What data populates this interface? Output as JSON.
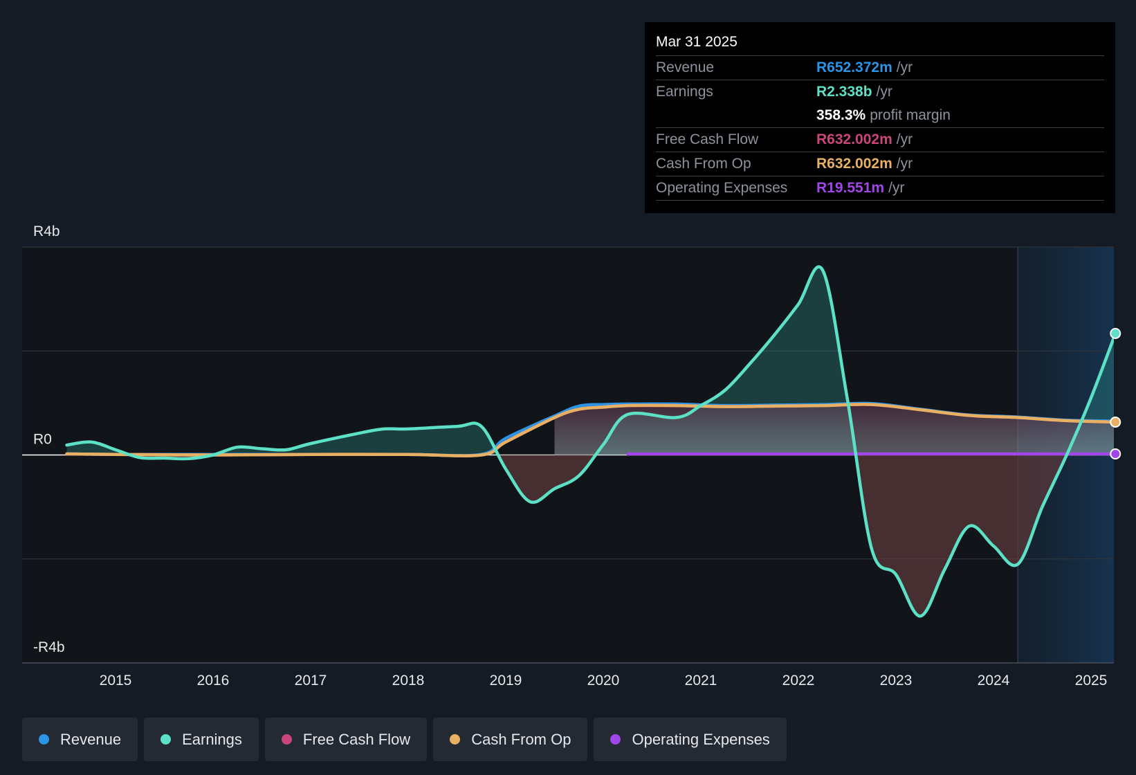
{
  "chart_data": {
    "type": "line",
    "currency": "R",
    "x_range": [
      2014.05,
      2025.25
    ],
    "ylim": [
      -4,
      4
    ],
    "y_unit": "billions",
    "y_ticks": [
      {
        "value": 4,
        "label": "R4b"
      },
      {
        "value": 0,
        "label": "R0"
      },
      {
        "value": -4,
        "label": "-R4b"
      }
    ],
    "x_ticks": [
      2015,
      2016,
      2017,
      2018,
      2019,
      2020,
      2021,
      2022,
      2023,
      2024,
      2025
    ],
    "forecast_start": 2024.25,
    "series": [
      {
        "name": "Revenue",
        "color": "#2b94e6",
        "points": [
          [
            2014.5,
            0.02
          ],
          [
            2015.0,
            0.01
          ],
          [
            2016.0,
            0.01
          ],
          [
            2017.0,
            0.01
          ],
          [
            2018.0,
            0.01
          ],
          [
            2018.75,
            0.01
          ],
          [
            2019.0,
            0.32
          ],
          [
            2019.5,
            0.75
          ],
          [
            2019.75,
            0.94
          ],
          [
            2020.0,
            0.97
          ],
          [
            2020.25,
            0.98
          ],
          [
            2020.75,
            0.98
          ],
          [
            2021.25,
            0.95
          ],
          [
            2021.75,
            0.96
          ],
          [
            2022.25,
            0.97
          ],
          [
            2022.75,
            0.99
          ],
          [
            2023.25,
            0.88
          ],
          [
            2023.75,
            0.77
          ],
          [
            2024.25,
            0.73
          ],
          [
            2024.75,
            0.67
          ],
          [
            2025.25,
            0.652
          ]
        ]
      },
      {
        "name": "Earnings",
        "color": "#5ce0c6",
        "points": [
          [
            2014.5,
            0.19
          ],
          [
            2014.75,
            0.25
          ],
          [
            2015.0,
            0.1
          ],
          [
            2015.25,
            -0.05
          ],
          [
            2015.5,
            -0.06
          ],
          [
            2015.75,
            -0.07
          ],
          [
            2016.0,
            0.0
          ],
          [
            2016.25,
            0.15
          ],
          [
            2016.5,
            0.12
          ],
          [
            2016.75,
            0.1
          ],
          [
            2017.0,
            0.22
          ],
          [
            2017.5,
            0.42
          ],
          [
            2017.75,
            0.5
          ],
          [
            2018.0,
            0.5
          ],
          [
            2018.5,
            0.55
          ],
          [
            2018.75,
            0.55
          ],
          [
            2019.0,
            -0.27
          ],
          [
            2019.25,
            -0.9
          ],
          [
            2019.5,
            -0.65
          ],
          [
            2019.75,
            -0.4
          ],
          [
            2020.0,
            0.2
          ],
          [
            2020.25,
            0.78
          ],
          [
            2020.75,
            0.72
          ],
          [
            2021.0,
            0.95
          ],
          [
            2021.25,
            1.25
          ],
          [
            2021.5,
            1.75
          ],
          [
            2021.75,
            2.3
          ],
          [
            2022.0,
            2.9
          ],
          [
            2022.25,
            3.55
          ],
          [
            2022.5,
            1.1
          ],
          [
            2022.75,
            -1.8
          ],
          [
            2023.0,
            -2.3
          ],
          [
            2023.25,
            -3.1
          ],
          [
            2023.5,
            -2.2
          ],
          [
            2023.75,
            -1.37
          ],
          [
            2024.0,
            -1.75
          ],
          [
            2024.25,
            -2.1
          ],
          [
            2024.5,
            -1.0
          ],
          [
            2024.75,
            0.0
          ],
          [
            2025.0,
            1.1
          ],
          [
            2025.25,
            2.338
          ]
        ]
      },
      {
        "name": "Free Cash Flow",
        "color": "#c9457a",
        "points": [
          [
            2014.5,
            0.02
          ],
          [
            2015.0,
            0.01
          ],
          [
            2016.0,
            0.0
          ],
          [
            2017.0,
            0.01
          ],
          [
            2018.0,
            0.01
          ],
          [
            2018.75,
            0.0
          ],
          [
            2019.0,
            0.25
          ],
          [
            2019.5,
            0.72
          ],
          [
            2019.75,
            0.88
          ],
          [
            2020.0,
            0.92
          ],
          [
            2020.25,
            0.95
          ],
          [
            2020.75,
            0.95
          ],
          [
            2021.25,
            0.93
          ],
          [
            2021.75,
            0.94
          ],
          [
            2022.25,
            0.95
          ],
          [
            2022.75,
            0.97
          ],
          [
            2023.25,
            0.87
          ],
          [
            2023.75,
            0.76
          ],
          [
            2024.25,
            0.72
          ],
          [
            2024.75,
            0.66
          ],
          [
            2025.25,
            0.632
          ]
        ]
      },
      {
        "name": "Cash From Op",
        "color": "#e8b063",
        "points": [
          [
            2014.5,
            0.02
          ],
          [
            2015.0,
            0.01
          ],
          [
            2016.0,
            0.0
          ],
          [
            2017.0,
            0.01
          ],
          [
            2018.0,
            0.01
          ],
          [
            2018.75,
            0.0
          ],
          [
            2019.0,
            0.25
          ],
          [
            2019.5,
            0.72
          ],
          [
            2019.75,
            0.88
          ],
          [
            2020.0,
            0.92
          ],
          [
            2020.25,
            0.95
          ],
          [
            2020.75,
            0.95
          ],
          [
            2021.25,
            0.93
          ],
          [
            2021.75,
            0.94
          ],
          [
            2022.25,
            0.95
          ],
          [
            2022.75,
            0.97
          ],
          [
            2023.25,
            0.87
          ],
          [
            2023.75,
            0.76
          ],
          [
            2024.25,
            0.72
          ],
          [
            2024.75,
            0.66
          ],
          [
            2025.25,
            0.632
          ]
        ]
      },
      {
        "name": "Operating Expenses",
        "color": "#a146e8",
        "points": [
          [
            2020.25,
            0.02
          ],
          [
            2021.0,
            0.02
          ],
          [
            2022.0,
            0.02
          ],
          [
            2023.0,
            0.02
          ],
          [
            2024.0,
            0.02
          ],
          [
            2025.25,
            0.0196
          ]
        ]
      }
    ]
  },
  "tooltip": {
    "date": "Mar 31 2025",
    "rows": [
      {
        "label": "Revenue",
        "value": "R652.372m",
        "unit": "/yr",
        "color": "#2b94e6"
      },
      {
        "label": "Earnings",
        "value": "R2.338b",
        "unit": "/yr",
        "color": "#5ce0c6"
      },
      {
        "label": "",
        "value": "358.3%",
        "unit": "profit margin",
        "color": "#ffffff"
      },
      {
        "label": "Free Cash Flow",
        "value": "R632.002m",
        "unit": "/yr",
        "color": "#c9457a"
      },
      {
        "label": "Cash From Op",
        "value": "R632.002m",
        "unit": "/yr",
        "color": "#e8b063"
      },
      {
        "label": "Operating Expenses",
        "value": "R19.551m",
        "unit": "/yr",
        "color": "#a146e8"
      }
    ]
  },
  "legend": [
    {
      "label": "Revenue",
      "color": "#2b94e6"
    },
    {
      "label": "Earnings",
      "color": "#5ce0c6"
    },
    {
      "label": "Free Cash Flow",
      "color": "#c9457a"
    },
    {
      "label": "Cash From Op",
      "color": "#e8b063"
    },
    {
      "label": "Operating Expenses",
      "color": "#a146e8"
    }
  ]
}
